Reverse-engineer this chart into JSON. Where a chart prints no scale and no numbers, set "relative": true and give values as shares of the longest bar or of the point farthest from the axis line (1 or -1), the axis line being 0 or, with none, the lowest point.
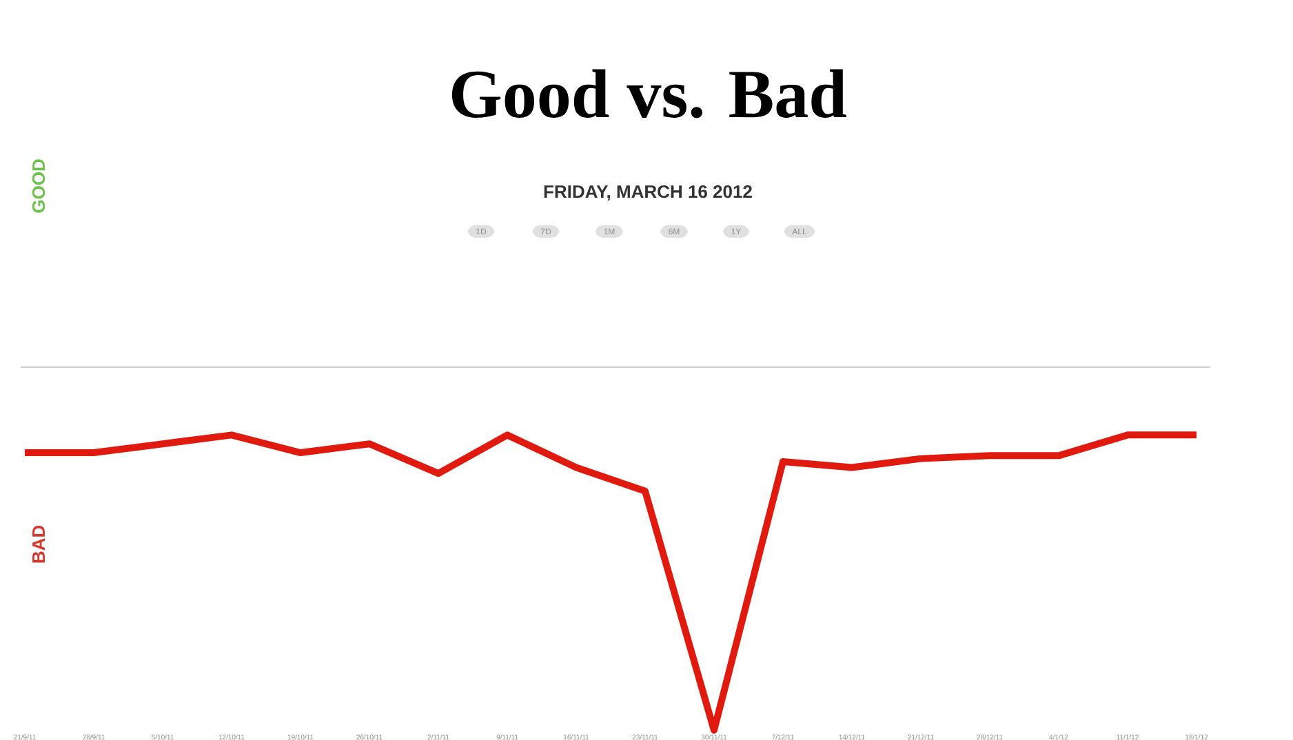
{
  "chart_data": {
    "type": "line",
    "title": "Good vs. Bad",
    "subtitle": "FRIDAY, MARCH 16 2012",
    "categories": [
      "21/9/11",
      "28/9/11",
      "5/10/11",
      "12/10/11",
      "19/10/11",
      "26/10/11",
      "2/11/11",
      "9/11/11",
      "16/11/11",
      "23/11/11",
      "30/11/11",
      "7/12/11",
      "14/12/11",
      "21/12/11",
      "28/12/11",
      "4/1/12",
      "11/1/12",
      "18/1/12"
    ],
    "series": [
      {
        "color": "#e01a0f",
        "values": [
          0.94,
          0.94,
          0.97,
          1,
          0.94,
          0.97,
          0.87,
          1,
          0.89,
          0.81,
          0,
          0.91,
          0.89,
          0.92,
          0.93,
          0.93,
          1,
          1
        ]
      }
    ],
    "relative": true,
    "ref_lines": [
      {
        "axis": "y",
        "value": 1.23,
        "color": "#d4d4d4"
      }
    ],
    "annotations": [
      "1D",
      "7D",
      "1M",
      "6M",
      "1Y",
      "ALL",
      "GOOD",
      "BAD"
    ]
  }
}
